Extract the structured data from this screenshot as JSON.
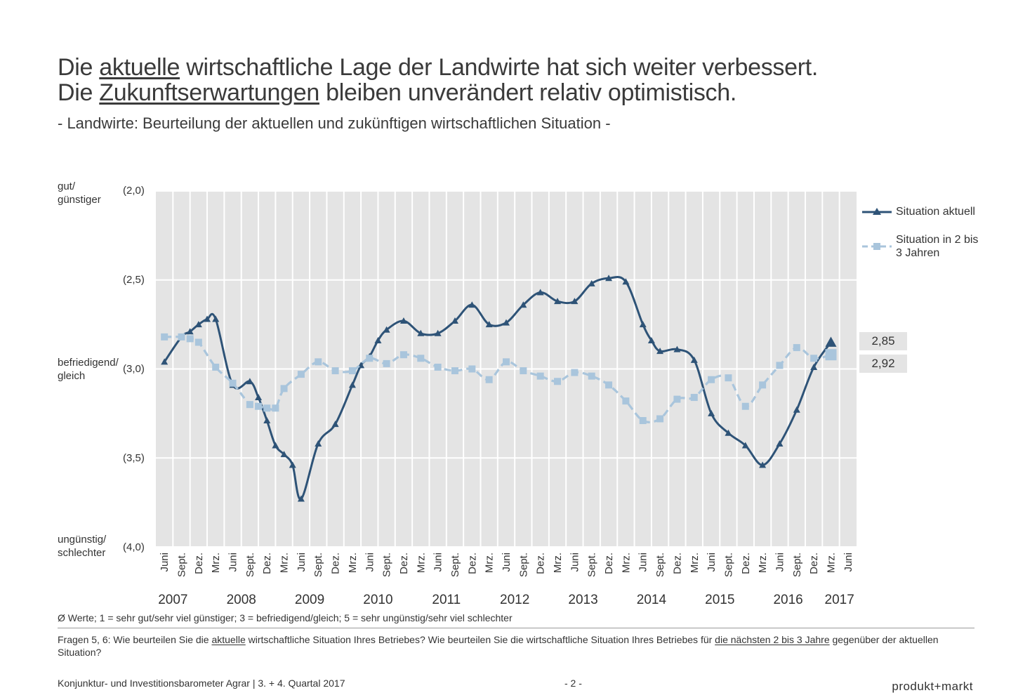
{
  "header": {
    "line1": {
      "pre": "Die ",
      "u": "aktuelle",
      "post": " wirtschaftliche Lage der Landwirte hat sich weiter verbessert."
    },
    "line2": {
      "pre": "Die ",
      "u": "Zukunftserwartungen",
      "post": " bleiben unverändert relativ optimistisch."
    },
    "subtitle": "- Landwirte: Beurteilung der aktuellen und zukünftigen wirtschaftlichen Situation -"
  },
  "y_side_labels": {
    "top_1": "gut/",
    "top_2": "günstiger",
    "mid_1": "befriedigend/",
    "mid_2": "gleich",
    "bot_1": "ungünstig/",
    "bot_2": "schlechter"
  },
  "legend": {
    "aktuell": "Situation aktuell",
    "zukunft_1": "Situation in 2 bis",
    "zukunft_2": "3 Jahren"
  },
  "end_values": {
    "aktuell": "2,85",
    "zukunft": "2,92"
  },
  "footnote": "Ø Werte; 1 = sehr gut/sehr viel günstiger; 3 = befriedigend/gleich; 5 = sehr ungünstig/sehr viel schlechter",
  "question": {
    "p1": "Fragen 5, 6: Wie beurteilen Sie die ",
    "u1": "aktuelle",
    "p2": " wirtschaftliche Situation Ihres Betriebes? Wie beurteilen Sie die wirtschaftliche Situation Ihres Betriebes für ",
    "u2": "die nächsten 2 bis 3 Jahre",
    "p3": " gegenüber der aktuellen Situation?"
  },
  "footer": {
    "left": "Konjunktur- und Investitionsbarometer Agrar | 3. + 4. Quartal 2017",
    "page": "- 2 -",
    "logo": "produkt+markt"
  },
  "colors": {
    "aktuell": "#2e5377",
    "zukunft": "#a9c5dc",
    "plot_bg": "#e4e4e4",
    "grid": "#ffffff"
  },
  "chart_data": {
    "type": "line",
    "y_inverted": true,
    "ylim": [
      2.0,
      4.0
    ],
    "yticks": [
      "(2,0)",
      "(2,5)",
      "(3,0)",
      "(3,5)",
      "(4,0)"
    ],
    "ytick_values": [
      2.0,
      2.5,
      3.0,
      3.5,
      4.0
    ],
    "grid": true,
    "legend_position": "right",
    "x_labels": [
      "Juni",
      "Sept.",
      "Dez.",
      "Mrz.",
      "Juni",
      "Sept.",
      "Dez.",
      "Mrz.",
      "Juni",
      "Sept.",
      "Dez.",
      "Mrz.",
      "Juni",
      "Sept.",
      "Dez.",
      "Mrz.",
      "Juni",
      "Sept.",
      "Dez.",
      "Mrz.",
      "Juni",
      "Sept.",
      "Dez.",
      "Mrz.",
      "Juni",
      "Sept.",
      "Dez.",
      "Mrz.",
      "Juni",
      "Sept.",
      "Dez.",
      "Mrz.",
      "Juni",
      "Sept.",
      "Dez.",
      "Mrz.",
      "Juni",
      "Sept.",
      "Dez.",
      "Mrz.",
      "Juni"
    ],
    "years": [
      {
        "label": "2007",
        "index": 0.5
      },
      {
        "label": "2008",
        "index": 4.5
      },
      {
        "label": "2009",
        "index": 8.5
      },
      {
        "label": "2010",
        "index": 12.5
      },
      {
        "label": "2011",
        "index": 16.5
      },
      {
        "label": "2012",
        "index": 20.5
      },
      {
        "label": "2013",
        "index": 24.5
      },
      {
        "label": "2014",
        "index": 28.5
      },
      {
        "label": "2015",
        "index": 32.5
      },
      {
        "label": "2016",
        "index": 36.5
      },
      {
        "label": "2017",
        "index": 39.5
      }
    ],
    "series": [
      {
        "name": "Situation aktuell",
        "marker": "triangle",
        "dash": "solid",
        "points": [
          {
            "x": 0,
            "y": 2.96
          },
          {
            "x": 1,
            "y": 2.82
          },
          {
            "x": 1.5,
            "y": 2.79
          },
          {
            "x": 2,
            "y": 2.75
          },
          {
            "x": 2.5,
            "y": 2.72
          },
          {
            "x": 3,
            "y": 2.72
          },
          {
            "x": 4,
            "y": 3.09
          },
          {
            "x": 5,
            "y": 3.07
          },
          {
            "x": 5.5,
            "y": 3.16
          },
          {
            "x": 6,
            "y": 3.29
          },
          {
            "x": 6.5,
            "y": 3.43
          },
          {
            "x": 7,
            "y": 3.48
          },
          {
            "x": 7.5,
            "y": 3.54
          },
          {
            "x": 8,
            "y": 3.73
          },
          {
            "x": 9,
            "y": 3.42
          },
          {
            "x": 10,
            "y": 3.31
          },
          {
            "x": 11,
            "y": 3.09
          },
          {
            "x": 11.5,
            "y": 2.98
          },
          {
            "x": 12,
            "y": 2.93
          },
          {
            "x": 12.5,
            "y": 2.84
          },
          {
            "x": 13,
            "y": 2.78
          },
          {
            "x": 14,
            "y": 2.73
          },
          {
            "x": 15,
            "y": 2.8
          },
          {
            "x": 16,
            "y": 2.8
          },
          {
            "x": 17,
            "y": 2.73
          },
          {
            "x": 18,
            "y": 2.64
          },
          {
            "x": 19,
            "y": 2.75
          },
          {
            "x": 20,
            "y": 2.74
          },
          {
            "x": 21,
            "y": 2.64
          },
          {
            "x": 22,
            "y": 2.57
          },
          {
            "x": 23,
            "y": 2.62
          },
          {
            "x": 24,
            "y": 2.62
          },
          {
            "x": 25,
            "y": 2.52
          },
          {
            "x": 26,
            "y": 2.49
          },
          {
            "x": 27,
            "y": 2.51
          },
          {
            "x": 28,
            "y": 2.75
          },
          {
            "x": 28.5,
            "y": 2.84
          },
          {
            "x": 29,
            "y": 2.9
          },
          {
            "x": 30,
            "y": 2.89
          },
          {
            "x": 31,
            "y": 2.95
          },
          {
            "x": 32,
            "y": 3.25
          },
          {
            "x": 33,
            "y": 3.36
          },
          {
            "x": 34,
            "y": 3.43
          },
          {
            "x": 35,
            "y": 3.54
          },
          {
            "x": 36,
            "y": 3.42
          },
          {
            "x": 37,
            "y": 3.23
          },
          {
            "x": 38,
            "y": 2.99
          },
          {
            "x": 39,
            "y": 2.85
          }
        ]
      },
      {
        "name": "Situation in 2 bis 3 Jahren",
        "marker": "square",
        "dash": "dashed",
        "points": [
          {
            "x": 0,
            "y": 2.82
          },
          {
            "x": 1,
            "y": 2.82
          },
          {
            "x": 1.5,
            "y": 2.83
          },
          {
            "x": 2,
            "y": 2.85
          },
          {
            "x": 3,
            "y": 2.99
          },
          {
            "x": 4,
            "y": 3.08
          },
          {
            "x": 5,
            "y": 3.2
          },
          {
            "x": 5.5,
            "y": 3.21
          },
          {
            "x": 6,
            "y": 3.22
          },
          {
            "x": 6.5,
            "y": 3.22
          },
          {
            "x": 7,
            "y": 3.11
          },
          {
            "x": 8,
            "y": 3.03
          },
          {
            "x": 9,
            "y": 2.96
          },
          {
            "x": 10,
            "y": 3.01
          },
          {
            "x": 11,
            "y": 3.01
          },
          {
            "x": 12,
            "y": 2.94
          },
          {
            "x": 13,
            "y": 2.97
          },
          {
            "x": 14,
            "y": 2.92
          },
          {
            "x": 15,
            "y": 2.94
          },
          {
            "x": 16,
            "y": 2.99
          },
          {
            "x": 17,
            "y": 3.01
          },
          {
            "x": 18,
            "y": 3.0
          },
          {
            "x": 19,
            "y": 3.06
          },
          {
            "x": 20,
            "y": 2.96
          },
          {
            "x": 21,
            "y": 3.01
          },
          {
            "x": 22,
            "y": 3.04
          },
          {
            "x": 23,
            "y": 3.07
          },
          {
            "x": 24,
            "y": 3.02
          },
          {
            "x": 25,
            "y": 3.04
          },
          {
            "x": 26,
            "y": 3.09
          },
          {
            "x": 27,
            "y": 3.18
          },
          {
            "x": 28,
            "y": 3.29
          },
          {
            "x": 29,
            "y": 3.28
          },
          {
            "x": 30,
            "y": 3.17
          },
          {
            "x": 31,
            "y": 3.16
          },
          {
            "x": 32,
            "y": 3.06
          },
          {
            "x": 33,
            "y": 3.05
          },
          {
            "x": 34,
            "y": 3.21
          },
          {
            "x": 35,
            "y": 3.09
          },
          {
            "x": 36,
            "y": 2.98
          },
          {
            "x": 37,
            "y": 2.88
          },
          {
            "x": 38,
            "y": 2.94
          },
          {
            "x": 39,
            "y": 2.92
          }
        ]
      }
    ]
  }
}
